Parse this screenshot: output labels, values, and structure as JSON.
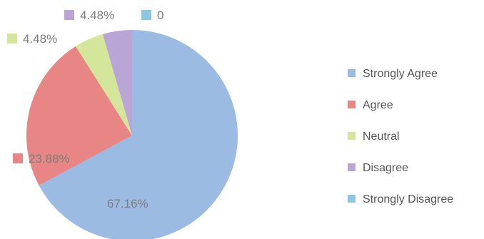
{
  "chart_data": {
    "type": "pie",
    "title": "",
    "categories": [
      "Strongly Agree",
      "Agree",
      "Neutral",
      "Disagree",
      "Strongly Disagree"
    ],
    "values": [
      67.16,
      23.88,
      4.48,
      4.48,
      0
    ],
    "data_labels": [
      "67.16%",
      "23.88%",
      "4.48%",
      "4.48%",
      "0"
    ],
    "colors": [
      "#9bbbe3",
      "#e88585",
      "#d4e69a",
      "#b9a6d6",
      "#8cc9e0"
    ],
    "legend_position": "right"
  }
}
